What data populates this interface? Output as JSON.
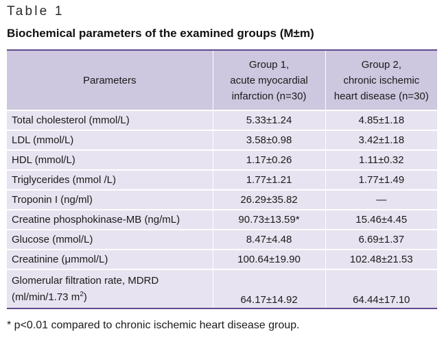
{
  "table_label": "Table 1",
  "title": "Biochemical parameters of the examined groups (M±m)",
  "headers": {
    "parameters": "Parameters",
    "group1": [
      "Group 1,",
      "acute myocardial",
      "infarction (n=30)"
    ],
    "group2": [
      "Group 2,",
      "chronic ischemic",
      "heart disease (n=30)"
    ]
  },
  "rows": [
    {
      "parameter": "Total cholesterol (mmol/L)",
      "group1": "5.33±1.24",
      "group2": "4.85±1.18"
    },
    {
      "parameter": "LDL (mmol/L)",
      "group1": "3.58±0.98",
      "group2": "3.42±1.18"
    },
    {
      "parameter": "HDL (mmol/L)",
      "group1": "1.17±0.26",
      "group2": "1.11±0.32"
    },
    {
      "parameter": "Triglycerides (mmol /L)",
      "group1": "1.77±1.21",
      "group2": "1.77±1.49"
    },
    {
      "parameter": "Troponin I (ng/ml)",
      "group1": "26.29±35.82",
      "group2": "—"
    },
    {
      "parameter": "Creatine phosphokinase-MB (ng/mL)",
      "group1": "90.73±13.59*",
      "group2": "15.46±4.45"
    },
    {
      "parameter": "Glucose (mmol/L)",
      "group1": "8.47±4.48",
      "group2": "6.69±1.37"
    },
    {
      "parameter": "Creatinine (μmmol/L)",
      "group1": "100.64±19.90",
      "group2": "102.48±21.53"
    }
  ],
  "gfr_row": {
    "parameter_line1": "Glomerular filtration rate, MDRD",
    "parameter_line2": "(ml/min/1.73 m",
    "parameter_sup": "2",
    "parameter_close": ")",
    "group1": "64.17±14.92",
    "group2": "64.44±17.10"
  },
  "footnote": "* p<0.01 compared to chronic ischemic heart disease group."
}
